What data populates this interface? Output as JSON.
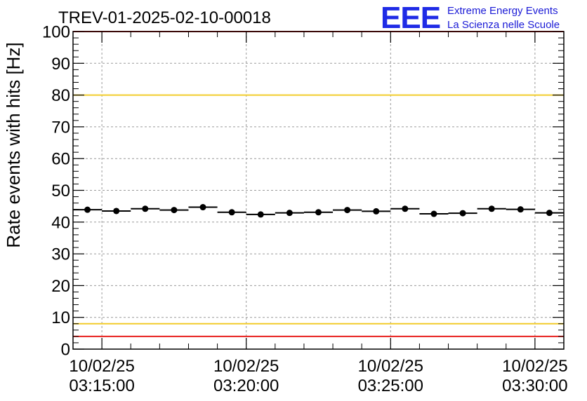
{
  "chart_data": {
    "type": "scatter",
    "title": "TREV-01-2025-02-10-00018",
    "ylabel": "Rate events with hits [Hz]",
    "xlabel": "",
    "ylim": [
      0,
      100
    ],
    "xlim": [
      "03:14:00",
      "03:31:00"
    ],
    "grid": true,
    "y_ticks": [
      "0",
      "10",
      "20",
      "30",
      "40",
      "50",
      "60",
      "70",
      "80",
      "90",
      "100"
    ],
    "x_ticks": [
      {
        "t": "03:15:00",
        "date": "10/02/25",
        "time": "03:15:00"
      },
      {
        "t": "03:20:00",
        "date": "10/02/25",
        "time": "03:20:00"
      },
      {
        "t": "03:25:00",
        "date": "10/02/25",
        "time": "03:25:00"
      },
      {
        "t": "03:30:00",
        "date": "10/02/25",
        "time": "03:30:00"
      }
    ],
    "points": [
      {
        "x": "03:14:30",
        "y": 43.9
      },
      {
        "x": "03:15:30",
        "y": 43.5
      },
      {
        "x": "03:16:30",
        "y": 44.2
      },
      {
        "x": "03:17:30",
        "y": 43.8
      },
      {
        "x": "03:18:30",
        "y": 44.7
      },
      {
        "x": "03:19:30",
        "y": 43.1
      },
      {
        "x": "03:20:30",
        "y": 42.4
      },
      {
        "x": "03:21:30",
        "y": 42.9
      },
      {
        "x": "03:22:30",
        "y": 43.1
      },
      {
        "x": "03:23:30",
        "y": 43.8
      },
      {
        "x": "03:24:30",
        "y": 43.4
      },
      {
        "x": "03:25:30",
        "y": 44.2
      },
      {
        "x": "03:26:30",
        "y": 42.6
      },
      {
        "x": "03:27:30",
        "y": 42.8
      },
      {
        "x": "03:28:30",
        "y": 44.2
      },
      {
        "x": "03:29:30",
        "y": 44.0
      },
      {
        "x": "03:30:30",
        "y": 42.9
      }
    ],
    "bin_width_seconds": 60,
    "reference_lines": [
      {
        "y": 100,
        "color": "#e8211d"
      },
      {
        "y": 80,
        "color": "#f2cc2a"
      },
      {
        "y": 8,
        "color": "#f2cc2a"
      },
      {
        "y": 4,
        "color": "#e8211d"
      }
    ]
  },
  "logo": {
    "letters": "EEE",
    "line1": "Extreme Energy Events",
    "line2": "La Scienza nelle Scuole"
  }
}
